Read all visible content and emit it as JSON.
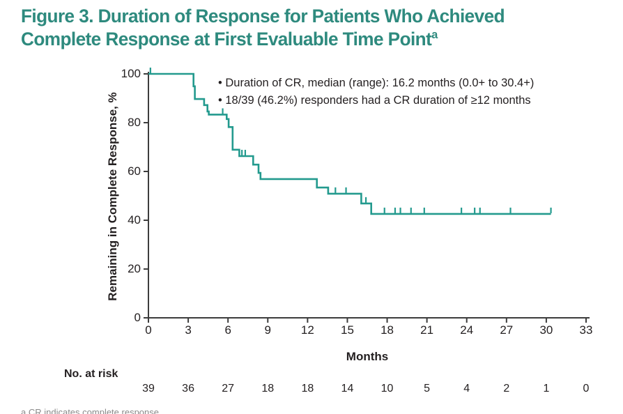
{
  "title": {
    "line1": "Figure 3. Duration of Response for Patients Who Achieved",
    "line2": "Complete Response at First Evaluable Time Point",
    "superscript": "a",
    "color": "#2e8a7e"
  },
  "annotations": [
    "• Duration of CR, median (range): 16.2 months (0.0+ to 30.4+)",
    "• 18/39 (46.2%) responders had a CR duration of ≥12 months"
  ],
  "chart_data": {
    "type": "line",
    "subtype": "kaplan-meier-step",
    "xlabel": "Months",
    "ylabel": "Remaining in Complete Response, %",
    "xlim": [
      0,
      33
    ],
    "ylim": [
      0,
      100
    ],
    "x_ticks": [
      0,
      3,
      6,
      9,
      12,
      15,
      18,
      21,
      24,
      27,
      30,
      33
    ],
    "y_ticks": [
      0,
      20,
      40,
      60,
      80,
      100
    ],
    "grid": "off",
    "legend": "none",
    "steps": [
      [
        0,
        100
      ],
      [
        3.4,
        94.9
      ],
      [
        3.5,
        89.7
      ],
      [
        4.2,
        87.2
      ],
      [
        4.45,
        84.6
      ],
      [
        4.55,
        83.3
      ],
      [
        5.9,
        81.5
      ],
      [
        6.05,
        78.2
      ],
      [
        6.35,
        68.9
      ],
      [
        6.85,
        66.3
      ],
      [
        7.9,
        62.8
      ],
      [
        8.3,
        59.4
      ],
      [
        8.45,
        56.9
      ],
      [
        12.7,
        53.4
      ],
      [
        13.55,
        50.9
      ],
      [
        16.05,
        46.9
      ],
      [
        16.8,
        42.6
      ]
    ],
    "end_x": 30.35,
    "censor_marks": [
      [
        0.15,
        100
      ],
      [
        5.6,
        83.3
      ],
      [
        7.05,
        66.3
      ],
      [
        7.3,
        66.3
      ],
      [
        14.1,
        50.9
      ],
      [
        14.9,
        50.9
      ],
      [
        16.4,
        46.9
      ],
      [
        17.8,
        42.6
      ],
      [
        18.6,
        42.6
      ],
      [
        19.0,
        42.6
      ],
      [
        19.8,
        42.6
      ],
      [
        20.8,
        42.6
      ],
      [
        23.6,
        42.6
      ],
      [
        24.6,
        42.6
      ],
      [
        25.0,
        42.6
      ],
      [
        27.3,
        42.6
      ],
      [
        30.35,
        42.6
      ]
    ],
    "curve_color": "#239a8e",
    "axis_color": "#3c3c3c",
    "at_risk": {
      "label": "No. at risk",
      "values": [
        39,
        36,
        27,
        18,
        18,
        14,
        10,
        5,
        4,
        2,
        1,
        0
      ]
    }
  },
  "footnote_fragment": "a CR indicates complete response."
}
